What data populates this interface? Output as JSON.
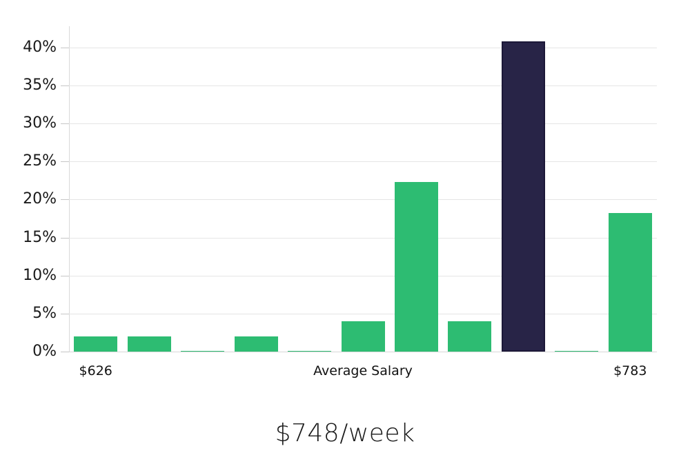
{
  "chart_data": {
    "type": "bar",
    "title": "$748/week",
    "xlabel": "",
    "ylabel": "",
    "ylim": [
      0,
      42.8
    ],
    "grid": true,
    "legend": "none",
    "y_ticks": [
      0,
      5,
      10,
      15,
      20,
      25,
      30,
      35,
      40
    ],
    "y_tick_suffix": "%",
    "x_tick_labels": [
      {
        "text": "$626",
        "bar_index": 0
      },
      {
        "text": "Average Salary",
        "bar_index": 5
      },
      {
        "text": "$783",
        "bar_index": 10
      }
    ],
    "bars": [
      {
        "value": 2,
        "color": "green"
      },
      {
        "value": 2,
        "color": "green"
      },
      {
        "value": 0.1,
        "color": "green"
      },
      {
        "value": 2,
        "color": "green"
      },
      {
        "value": 0.1,
        "color": "green"
      },
      {
        "value": 4,
        "color": "green"
      },
      {
        "value": 22.3,
        "color": "green"
      },
      {
        "value": 4,
        "color": "green"
      },
      {
        "value": 40.8,
        "color": "navy",
        "highlight": true
      },
      {
        "value": 0.1,
        "color": "green"
      },
      {
        "value": 18.2,
        "color": "green"
      }
    ],
    "colors": {
      "green": "#2dbc72",
      "navy": "#282447",
      "navy_border": "#1c1838",
      "gridline": "#e5e5e5",
      "axis_line": "#d8d8d8",
      "tick": "#c6c6c6",
      "text": "#1a1a1a"
    }
  }
}
